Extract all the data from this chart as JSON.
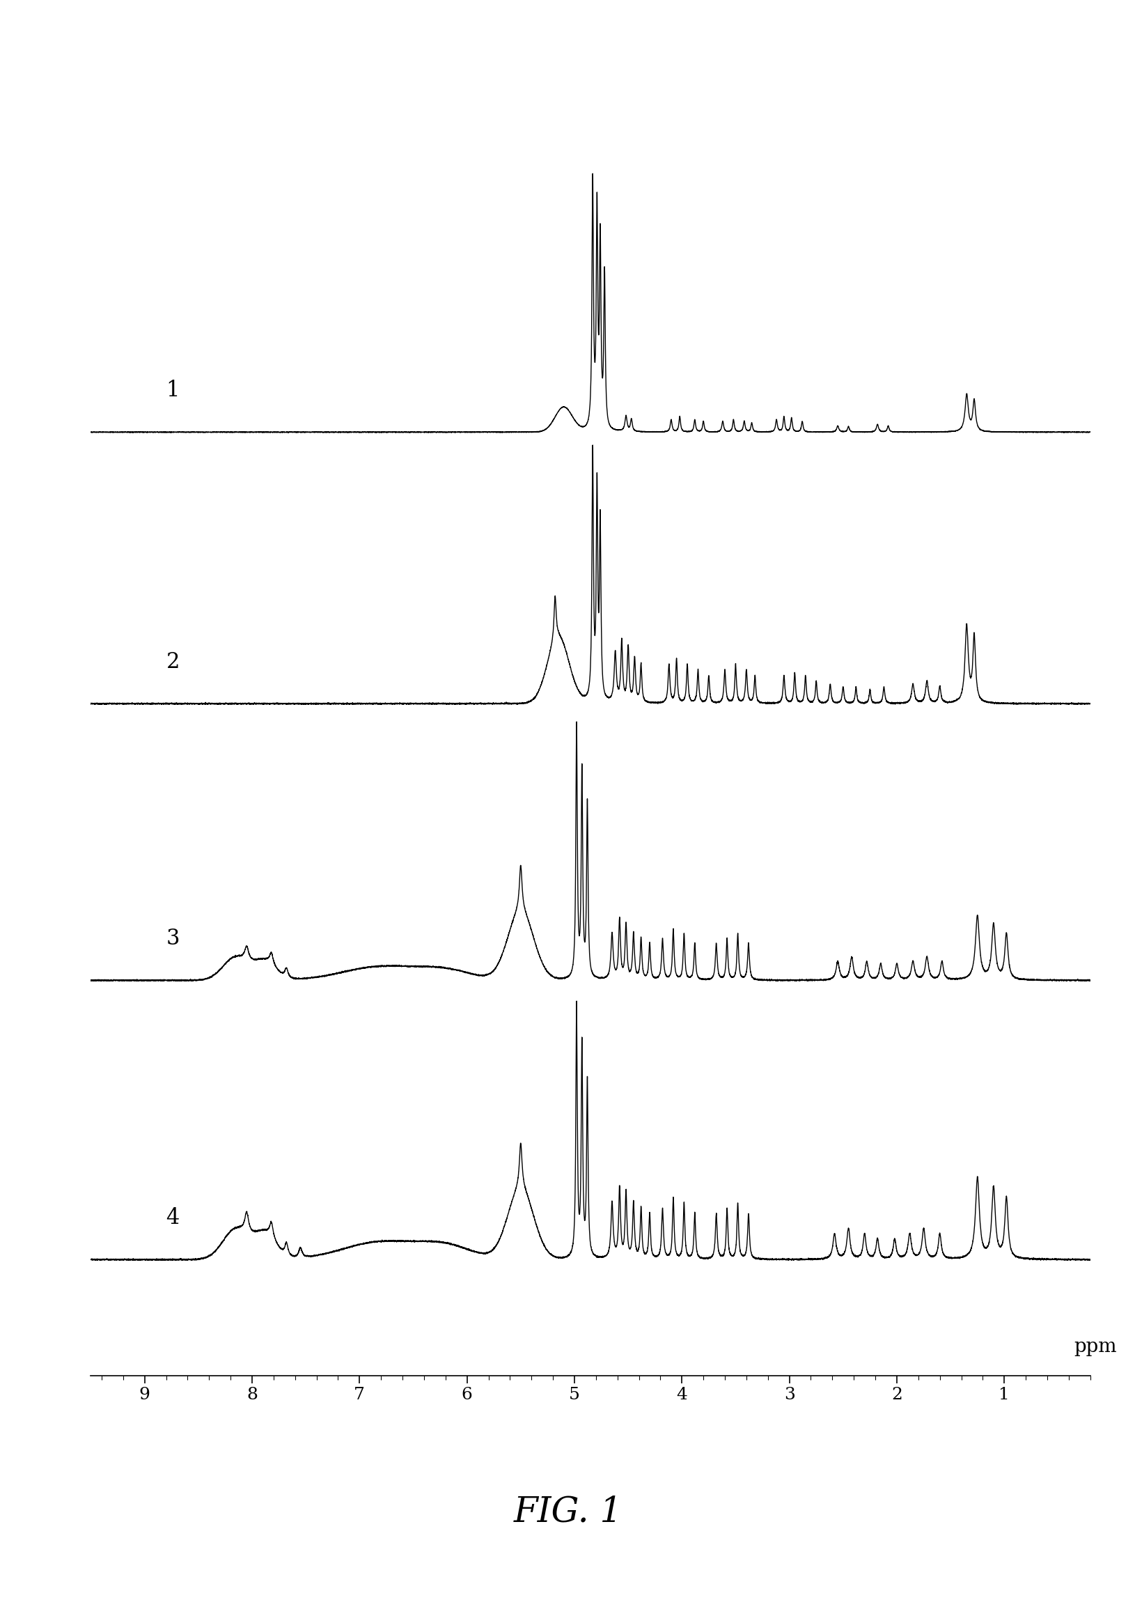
{
  "title": "FIG. 1",
  "xlabel": "ppm",
  "xlim": [
    9.5,
    0.2
  ],
  "spectrum_labels": [
    "1",
    "2",
    "3",
    "4"
  ],
  "background_color": "#ffffff",
  "line_color": "#000000",
  "label_fontsize": 22,
  "title_fontsize": 36,
  "xlabel_fontsize": 20,
  "tick_fontsize": 18
}
